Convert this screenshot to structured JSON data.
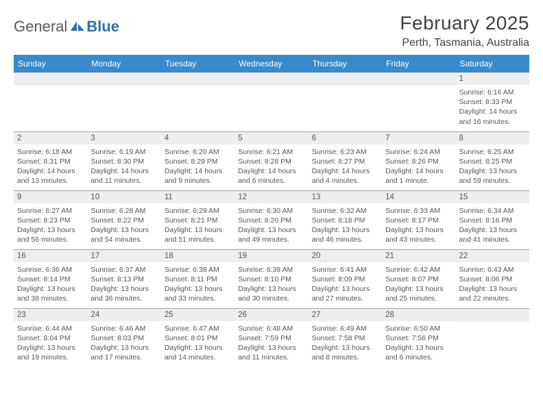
{
  "logo": {
    "general": "General",
    "blue": "Blue"
  },
  "title": "February 2025",
  "location": "Perth, Tasmania, Australia",
  "headers": [
    "Sunday",
    "Monday",
    "Tuesday",
    "Wednesday",
    "Thursday",
    "Friday",
    "Saturday"
  ],
  "colors": {
    "header_bg": "#3a8ac9",
    "header_text": "#ffffff",
    "daybar_bg": "#eeeeee",
    "divider": "#8aa9c3",
    "logo_blue": "#2f6fae",
    "text": "#555555"
  },
  "weeks": [
    [
      {
        "n": "",
        "sr": "",
        "ss": "",
        "dl": ""
      },
      {
        "n": "",
        "sr": "",
        "ss": "",
        "dl": ""
      },
      {
        "n": "",
        "sr": "",
        "ss": "",
        "dl": ""
      },
      {
        "n": "",
        "sr": "",
        "ss": "",
        "dl": ""
      },
      {
        "n": "",
        "sr": "",
        "ss": "",
        "dl": ""
      },
      {
        "n": "",
        "sr": "",
        "ss": "",
        "dl": ""
      },
      {
        "n": "1",
        "sr": "Sunrise: 6:16 AM",
        "ss": "Sunset: 8:33 PM",
        "dl": "Daylight: 14 hours and 16 minutes."
      }
    ],
    [
      {
        "n": "2",
        "sr": "Sunrise: 6:18 AM",
        "ss": "Sunset: 8:31 PM",
        "dl": "Daylight: 14 hours and 13 minutes."
      },
      {
        "n": "3",
        "sr": "Sunrise: 6:19 AM",
        "ss": "Sunset: 8:30 PM",
        "dl": "Daylight: 14 hours and 11 minutes."
      },
      {
        "n": "4",
        "sr": "Sunrise: 6:20 AM",
        "ss": "Sunset: 8:29 PM",
        "dl": "Daylight: 14 hours and 9 minutes."
      },
      {
        "n": "5",
        "sr": "Sunrise: 6:21 AM",
        "ss": "Sunset: 8:28 PM",
        "dl": "Daylight: 14 hours and 6 minutes."
      },
      {
        "n": "6",
        "sr": "Sunrise: 6:23 AM",
        "ss": "Sunset: 8:27 PM",
        "dl": "Daylight: 14 hours and 4 minutes."
      },
      {
        "n": "7",
        "sr": "Sunrise: 6:24 AM",
        "ss": "Sunset: 8:26 PM",
        "dl": "Daylight: 14 hours and 1 minute."
      },
      {
        "n": "8",
        "sr": "Sunrise: 6:25 AM",
        "ss": "Sunset: 8:25 PM",
        "dl": "Daylight: 13 hours and 59 minutes."
      }
    ],
    [
      {
        "n": "9",
        "sr": "Sunrise: 6:27 AM",
        "ss": "Sunset: 8:23 PM",
        "dl": "Daylight: 13 hours and 56 minutes."
      },
      {
        "n": "10",
        "sr": "Sunrise: 6:28 AM",
        "ss": "Sunset: 8:22 PM",
        "dl": "Daylight: 13 hours and 54 minutes."
      },
      {
        "n": "11",
        "sr": "Sunrise: 6:29 AM",
        "ss": "Sunset: 8:21 PM",
        "dl": "Daylight: 13 hours and 51 minutes."
      },
      {
        "n": "12",
        "sr": "Sunrise: 6:30 AM",
        "ss": "Sunset: 8:20 PM",
        "dl": "Daylight: 13 hours and 49 minutes."
      },
      {
        "n": "13",
        "sr": "Sunrise: 6:32 AM",
        "ss": "Sunset: 8:18 PM",
        "dl": "Daylight: 13 hours and 46 minutes."
      },
      {
        "n": "14",
        "sr": "Sunrise: 6:33 AM",
        "ss": "Sunset: 8:17 PM",
        "dl": "Daylight: 13 hours and 43 minutes."
      },
      {
        "n": "15",
        "sr": "Sunrise: 6:34 AM",
        "ss": "Sunset: 8:16 PM",
        "dl": "Daylight: 13 hours and 41 minutes."
      }
    ],
    [
      {
        "n": "16",
        "sr": "Sunrise: 6:36 AM",
        "ss": "Sunset: 8:14 PM",
        "dl": "Daylight: 13 hours and 38 minutes."
      },
      {
        "n": "17",
        "sr": "Sunrise: 6:37 AM",
        "ss": "Sunset: 8:13 PM",
        "dl": "Daylight: 13 hours and 36 minutes."
      },
      {
        "n": "18",
        "sr": "Sunrise: 6:38 AM",
        "ss": "Sunset: 8:11 PM",
        "dl": "Daylight: 13 hours and 33 minutes."
      },
      {
        "n": "19",
        "sr": "Sunrise: 6:39 AM",
        "ss": "Sunset: 8:10 PM",
        "dl": "Daylight: 13 hours and 30 minutes."
      },
      {
        "n": "20",
        "sr": "Sunrise: 6:41 AM",
        "ss": "Sunset: 8:09 PM",
        "dl": "Daylight: 13 hours and 27 minutes."
      },
      {
        "n": "21",
        "sr": "Sunrise: 6:42 AM",
        "ss": "Sunset: 8:07 PM",
        "dl": "Daylight: 13 hours and 25 minutes."
      },
      {
        "n": "22",
        "sr": "Sunrise: 6:43 AM",
        "ss": "Sunset: 8:06 PM",
        "dl": "Daylight: 13 hours and 22 minutes."
      }
    ],
    [
      {
        "n": "23",
        "sr": "Sunrise: 6:44 AM",
        "ss": "Sunset: 8:04 PM",
        "dl": "Daylight: 13 hours and 19 minutes."
      },
      {
        "n": "24",
        "sr": "Sunrise: 6:46 AM",
        "ss": "Sunset: 8:03 PM",
        "dl": "Daylight: 13 hours and 17 minutes."
      },
      {
        "n": "25",
        "sr": "Sunrise: 6:47 AM",
        "ss": "Sunset: 8:01 PM",
        "dl": "Daylight: 13 hours and 14 minutes."
      },
      {
        "n": "26",
        "sr": "Sunrise: 6:48 AM",
        "ss": "Sunset: 7:59 PM",
        "dl": "Daylight: 13 hours and 11 minutes."
      },
      {
        "n": "27",
        "sr": "Sunrise: 6:49 AM",
        "ss": "Sunset: 7:58 PM",
        "dl": "Daylight: 13 hours and 8 minutes."
      },
      {
        "n": "28",
        "sr": "Sunrise: 6:50 AM",
        "ss": "Sunset: 7:56 PM",
        "dl": "Daylight: 13 hours and 6 minutes."
      },
      {
        "n": "",
        "sr": "",
        "ss": "",
        "dl": ""
      }
    ]
  ]
}
